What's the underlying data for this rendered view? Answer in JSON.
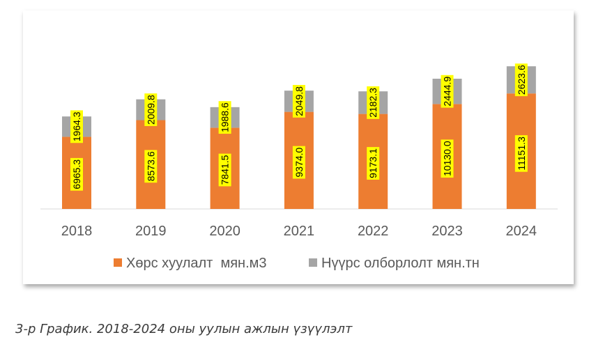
{
  "chart_data": {
    "type": "bar",
    "stacked": true,
    "categories": [
      "2018",
      "2019",
      "2020",
      "2021",
      "2022",
      "2023",
      "2024"
    ],
    "series": [
      {
        "name": "Хөрс хуулалт  мян.м3",
        "color": "#ED7D31",
        "values": [
          6965.3,
          8573.6,
          7841.5,
          9374.0,
          9173.1,
          10130.0,
          11151.3
        ],
        "labels": [
          "6965.3",
          "8573.6",
          "7841.5",
          "9374.0",
          "9173.1",
          "10130.0",
          "11151.3"
        ]
      },
      {
        "name": "Нүүрс олборлолт мян.тн",
        "color": "#A5A5A5",
        "values": [
          1964.3,
          2009.8,
          1988.6,
          2049.8,
          2182.3,
          2444.9,
          2623.6
        ],
        "labels": [
          "1964.3",
          "2009.8",
          "1988.6",
          "2049.8",
          "2182.3",
          "2444.9",
          "2623.6"
        ]
      }
    ],
    "title": "",
    "xlabel": "",
    "ylabel": "",
    "grid": false,
    "legend_position": "bottom",
    "data_label_color": "#FFFF00"
  },
  "caption": "3-р График. 2018-2024 оны уулын ажлын үзүүлэлт"
}
